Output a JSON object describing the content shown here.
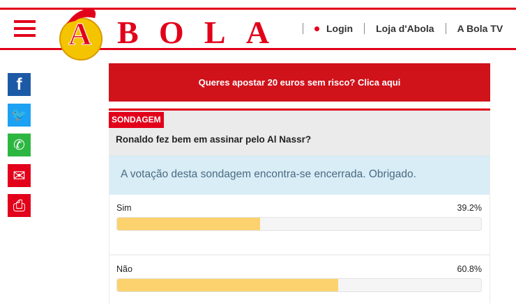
{
  "header": {
    "logo_text": "A BOLA",
    "nav": [
      {
        "label": "Login",
        "icon": "red-dot"
      },
      {
        "label": "Loja d'Abola"
      },
      {
        "label": "A Bola TV"
      }
    ],
    "brand_color": "#e2001a"
  },
  "social": [
    {
      "icon": "facebook-icon",
      "glyph": "f"
    },
    {
      "icon": "twitter-icon",
      "glyph": "🐦"
    },
    {
      "icon": "whatsapp-icon",
      "glyph": "✆"
    },
    {
      "icon": "email-icon",
      "glyph": "✉"
    },
    {
      "icon": "print-icon",
      "glyph": "⎙"
    }
  ],
  "banner": {
    "text": "Queres apostar 20 euros sem risco? Clica aqui"
  },
  "poll": {
    "tag": "SONDAGEM",
    "question": "Ronaldo fez bem em assinar pelo Al Nassr?",
    "closed_message": "A votação desta sondagem encontra-se encerrada. Obrigado.",
    "options": [
      {
        "label": "Sim",
        "percent_text": "39.2%",
        "percent": 39.2
      },
      {
        "label": "Não",
        "percent_text": "60.8%",
        "percent": 60.8
      }
    ],
    "bar_color": "#fbd26e"
  }
}
